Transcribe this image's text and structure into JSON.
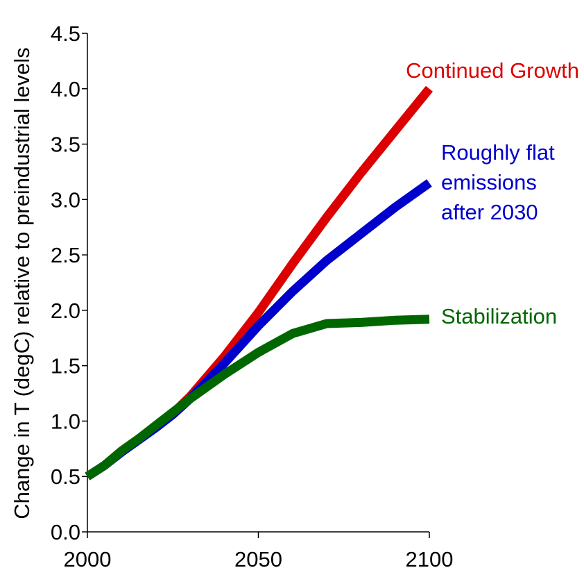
{
  "chart_data": {
    "type": "line",
    "title": "",
    "xlabel": "",
    "ylabel": "Change in T (degC) relative to preindustrial levels",
    "xlim": [
      2000,
      2100
    ],
    "ylim": [
      0.0,
      4.5
    ],
    "x_ticks": [
      "2000",
      "2050",
      "2100"
    ],
    "y_ticks": [
      "0.0",
      "0.5",
      "1.0",
      "1.5",
      "2.0",
      "2.5",
      "3.0",
      "3.5",
      "4.0",
      "4.5"
    ],
    "grid": false,
    "legend": "none",
    "series": [
      {
        "name": "Continued Growth",
        "label_lines": [
          "Continued Growth"
        ],
        "color": "#dd0000",
        "x": [
          2000,
          2005,
          2010,
          2015,
          2020,
          2025,
          2030,
          2040,
          2050,
          2060,
          2070,
          2080,
          2090,
          2100
        ],
        "y": [
          0.5,
          0.6,
          0.73,
          0.84,
          0.95,
          1.07,
          1.22,
          1.58,
          1.98,
          2.42,
          2.84,
          3.24,
          3.62,
          4.0
        ]
      },
      {
        "name": "Roughly flat emissions after 2030",
        "label_lines": [
          "Roughly flat",
          "emissions",
          "after 2030"
        ],
        "color": "#0000cc",
        "x": [
          2000,
          2005,
          2010,
          2015,
          2020,
          2025,
          2030,
          2040,
          2050,
          2060,
          2070,
          2080,
          2090,
          2100
        ],
        "y": [
          0.5,
          0.6,
          0.72,
          0.83,
          0.94,
          1.06,
          1.2,
          1.52,
          1.86,
          2.17,
          2.45,
          2.69,
          2.93,
          3.15
        ]
      },
      {
        "name": "Stabilization",
        "label_lines": [
          "Stabilization"
        ],
        "color": "#006600",
        "x": [
          2000,
          2005,
          2010,
          2015,
          2020,
          2025,
          2030,
          2040,
          2050,
          2060,
          2070,
          2080,
          2090,
          2100
        ],
        "y": [
          0.5,
          0.6,
          0.73,
          0.84,
          0.96,
          1.08,
          1.2,
          1.42,
          1.62,
          1.79,
          1.88,
          1.89,
          1.91,
          1.92
        ]
      }
    ]
  }
}
